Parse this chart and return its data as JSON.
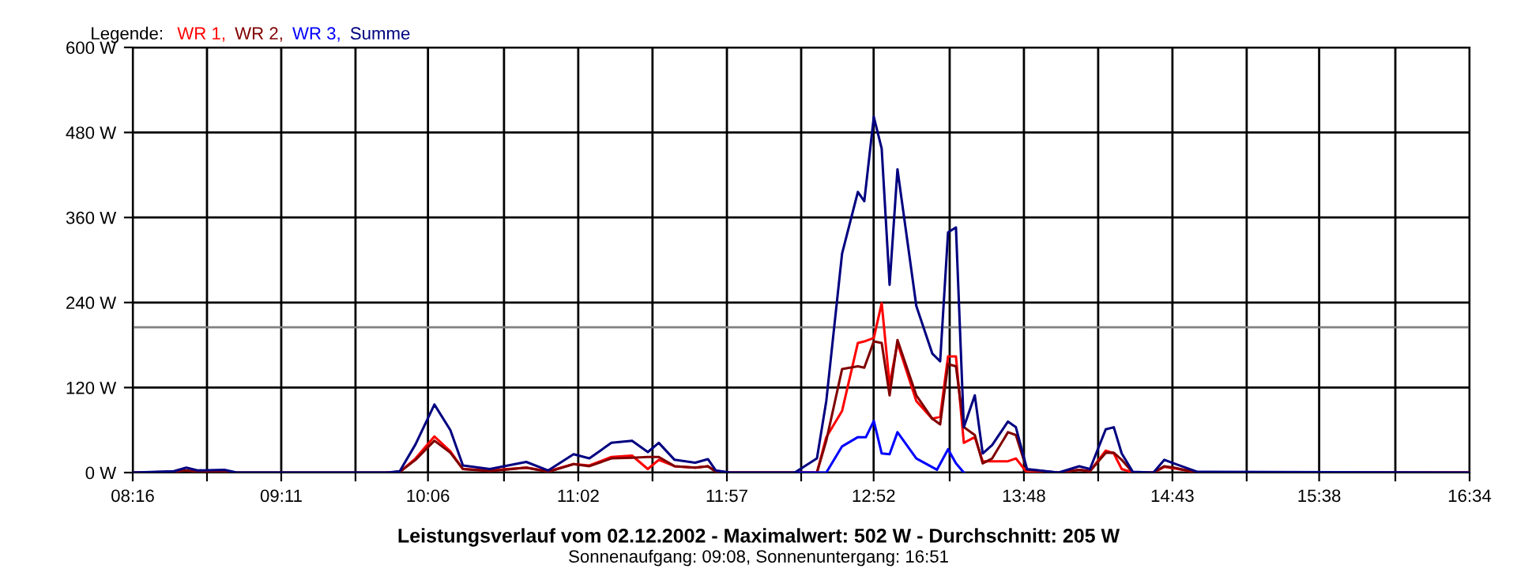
{
  "chart_data": {
    "type": "line",
    "title": "Leistungsverlauf vom 02.12.2002 - Maximalwert: 502 W - Durchschnitt: 205 W",
    "subtitle": "Sonnenaufgang: 09:08, Sonnenuntergang: 16:51",
    "legend_title": "Legende:",
    "legend": "top left",
    "grid": true,
    "marker": "none",
    "line_style": "solid",
    "x": [
      8.267,
      8.522,
      8.6,
      8.669,
      8.836,
      8.914,
      9.846,
      9.925,
      10.023,
      10.14,
      10.239,
      10.317,
      10.484,
      10.71,
      10.847,
      11.004,
      11.102,
      11.239,
      11.367,
      11.465,
      11.533,
      11.631,
      11.759,
      11.838,
      11.887,
      11.975,
      12.377,
      12.515,
      12.573,
      12.671,
      12.769,
      12.809,
      12.868,
      12.917,
      12.966,
      13.015,
      13.132,
      13.231,
      13.28,
      13.329,
      13.378,
      13.427,
      13.495,
      13.544,
      13.603,
      13.701,
      13.75,
      13.819,
      14.015,
      14.143,
      14.21,
      14.308,
      14.358,
      14.407,
      14.476,
      14.604,
      14.672,
      14.731,
      14.878,
      16.566
    ],
    "series": [
      {
        "name": "WR 1,",
        "color": "#ff0000",
        "values": [
          null,
          null,
          null,
          null,
          null,
          null,
          0,
          1,
          20,
          51,
          30,
          5,
          3,
          7,
          2,
          12,
          10,
          22,
          24,
          5,
          18,
          9,
          7,
          9,
          2,
          0,
          0,
          0,
          50,
          87,
          183,
          185,
          190,
          239,
          124,
          183,
          101,
          76,
          79,
          164,
          164,
          42,
          50,
          16,
          16,
          16,
          20,
          0,
          0,
          4,
          2,
          31,
          27,
          5,
          0,
          0,
          8,
          6,
          0,
          0
        ]
      },
      {
        "name": "WR 2,",
        "color": "#800000",
        "values": [
          0,
          1,
          3,
          1,
          2,
          0,
          0,
          1,
          18,
          45,
          28,
          5,
          2,
          7,
          1,
          12,
          9,
          20,
          21,
          22,
          22,
          9,
          7,
          9,
          1,
          0,
          0,
          0,
          45,
          146,
          150,
          148,
          185,
          183,
          109,
          187,
          109,
          76,
          68,
          153,
          150,
          64,
          53,
          13,
          20,
          57,
          53,
          4,
          0,
          4,
          2,
          28,
          28,
          18,
          0,
          0,
          9,
          7,
          0,
          0
        ]
      },
      {
        "name": "WR 3,",
        "color": "#0000ff",
        "x": [
          12.377,
          12.573,
          12.671,
          12.769,
          12.819,
          12.868,
          12.917,
          12.966,
          13.015,
          13.132,
          13.26,
          13.329,
          13.378,
          13.427
        ],
        "values": [
          0,
          0,
          37,
          50,
          50,
          73,
          27,
          26,
          57,
          20,
          4,
          33,
          13,
          0
        ]
      },
      {
        "name": "Summe",
        "color": "#000080",
        "values": [
          0,
          2,
          7,
          3,
          4,
          0,
          0,
          2,
          40,
          96,
          60,
          10,
          5,
          15,
          3,
          26,
          20,
          42,
          45,
          29,
          42,
          18,
          14,
          19,
          3,
          0,
          0,
          20,
          101,
          309,
          396,
          383,
          502,
          457,
          265,
          428,
          235,
          168,
          157,
          339,
          346,
          64,
          109,
          27,
          39,
          72,
          64,
          5,
          0,
          9,
          5,
          61,
          64,
          27,
          1,
          0,
          18,
          13,
          1,
          0
        ]
      }
    ],
    "ref_lines": [
      {
        "axis": "y",
        "value": 205,
        "color": "#808080"
      }
    ],
    "xlim": [
      8.267,
      16.567
    ],
    "xticks": [
      {
        "value": 8.267,
        "label": "08:16"
      },
      {
        "value": 8.728,
        "label": null
      },
      {
        "value": 9.189,
        "label": "09:11"
      },
      {
        "value": 9.65,
        "label": null
      },
      {
        "value": 10.1,
        "label": "10:06"
      },
      {
        "value": 10.572,
        "label": null
      },
      {
        "value": 11.033,
        "label": "11:02"
      },
      {
        "value": 11.494,
        "label": null
      },
      {
        "value": 11.956,
        "label": "11:57"
      },
      {
        "value": 12.417,
        "label": null
      },
      {
        "value": 12.867,
        "label": "12:52"
      },
      {
        "value": 13.339,
        "label": null
      },
      {
        "value": 13.8,
        "label": "13:48"
      },
      {
        "value": 14.261,
        "label": null
      },
      {
        "value": 14.722,
        "label": "14:43"
      },
      {
        "value": 15.183,
        "label": null
      },
      {
        "value": 15.633,
        "label": "15:38"
      },
      {
        "value": 16.106,
        "label": null
      },
      {
        "value": 16.567,
        "label": "16:34"
      }
    ],
    "ylim": [
      0,
      600
    ],
    "yticks": [
      {
        "value": 0,
        "label": "0 W"
      },
      {
        "value": 120,
        "label": "120 W"
      },
      {
        "value": 240,
        "label": "240 W"
      },
      {
        "value": 360,
        "label": "360 W"
      },
      {
        "value": 480,
        "label": "480 W"
      },
      {
        "value": 600,
        "label": "600 W"
      }
    ]
  }
}
